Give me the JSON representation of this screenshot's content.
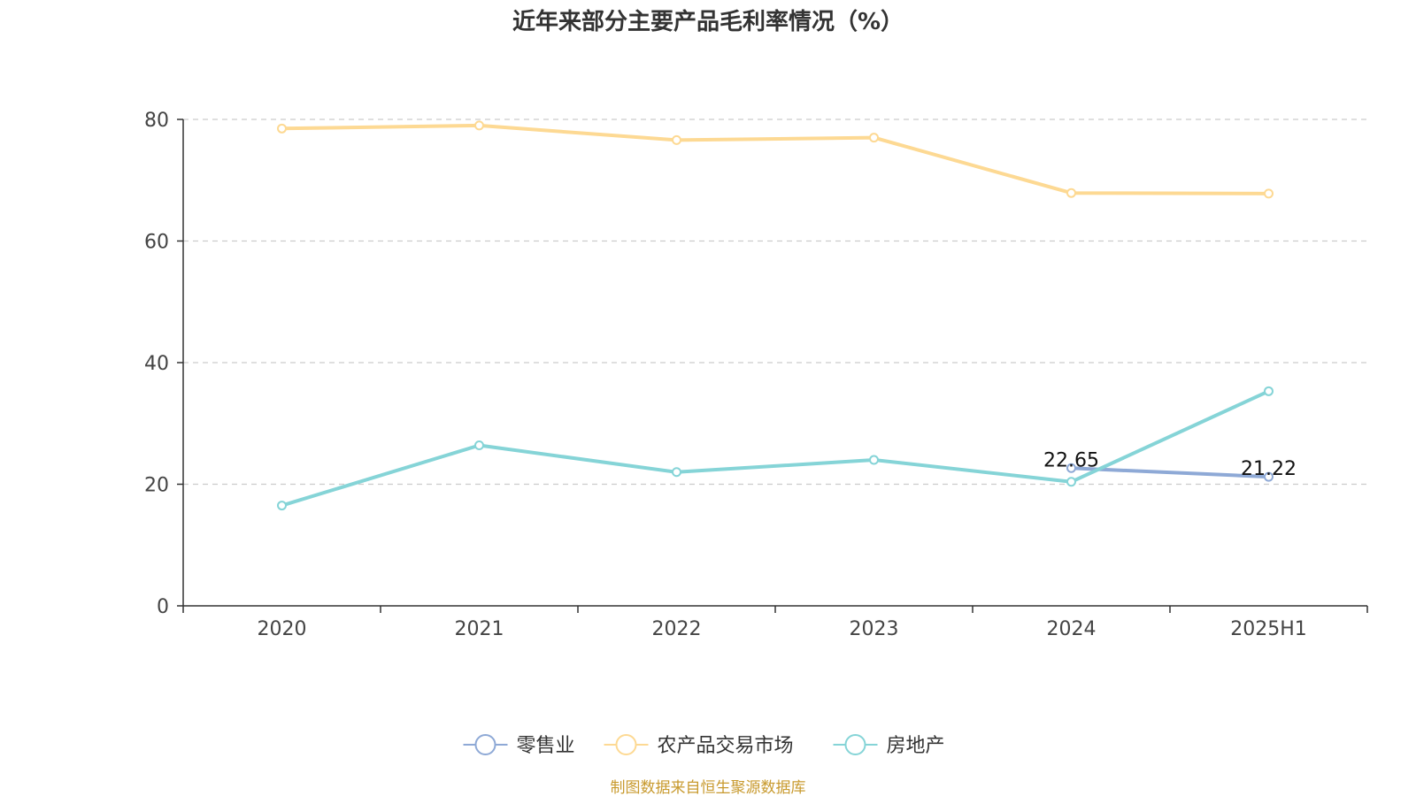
{
  "chart_data": {
    "type": "line",
    "title": "近年来部分主要产品毛利率情况（%）",
    "categories": [
      "2020",
      "2021",
      "2022",
      "2023",
      "2024",
      "2025H1"
    ],
    "ylim": [
      0,
      80
    ],
    "yticks": [
      0,
      20,
      40,
      60,
      80
    ],
    "grid": "horizontal-dashed",
    "legend_position": "bottom",
    "series": [
      {
        "name": "零售业",
        "color": "#8ea9d6",
        "values": [
          null,
          null,
          null,
          null,
          22.65,
          21.22
        ],
        "labels": [
          null,
          null,
          null,
          null,
          "22.65",
          "21.22"
        ]
      },
      {
        "name": "农产品交易市场",
        "color": "#fdd993",
        "values": [
          78.5,
          79.0,
          76.6,
          77.0,
          67.9,
          67.8
        ],
        "labels": [
          null,
          null,
          null,
          null,
          null,
          null
        ]
      },
      {
        "name": "房地产",
        "color": "#85d4d7",
        "values": [
          16.5,
          26.4,
          22.0,
          24.0,
          20.4,
          35.3
        ],
        "labels": [
          null,
          null,
          null,
          null,
          null,
          null
        ]
      }
    ]
  },
  "footer": {
    "source": "制图数据来自恒生聚源数据库",
    "source_color": "#c89a2e"
  }
}
